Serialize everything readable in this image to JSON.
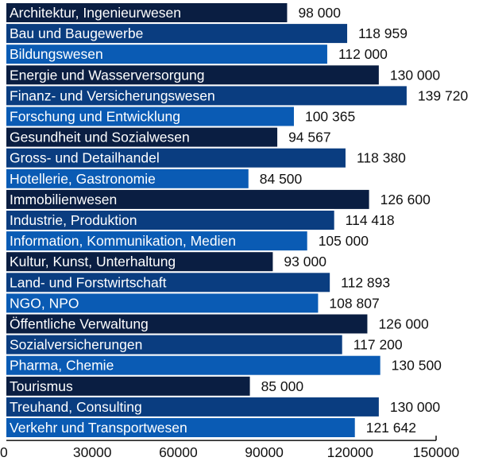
{
  "chart_data": {
    "type": "bar",
    "orientation": "horizontal",
    "categories": [
      "Architektur, Ingenieurwesen",
      "Bau und Baugewerbe",
      "Bildungswesen",
      "Energie und Wasserversorgung",
      "Finanz- und Versicherungswesen",
      "Forschung und Entwicklung",
      "Gesundheit und Sozialwesen",
      "Gross- und Detailhandel",
      "Hotellerie, Gastronomie",
      "Immobilienwesen",
      "Industrie, Produktion",
      "Information, Kommunikation, Medien",
      "Kultur, Kunst, Unterhaltung",
      "Land- und Forstwirtschaft",
      "NGO, NPO",
      "Öffentliche Verwaltung",
      "Sozialversicherungen",
      "Pharma, Chemie",
      "Tourismus",
      "Treuhand, Consulting",
      "Verkehr und Transportwesen"
    ],
    "values": [
      98000,
      118959,
      112000,
      130000,
      139720,
      100365,
      94567,
      118380,
      84500,
      126600,
      114418,
      105000,
      93000,
      112893,
      108807,
      126000,
      117200,
      130500,
      85000,
      130000,
      121642
    ],
    "value_labels": [
      "98 000",
      "118 959",
      "112 000",
      "130 000",
      "139 720",
      "100 365",
      "94 567",
      "118 380",
      "84 500",
      "126 600",
      "114 418",
      "105 000",
      "93 000",
      "112 893",
      "108 807",
      "126 000",
      "117 200",
      "130 500",
      "85 000",
      "130 000",
      "121 642"
    ],
    "bar_colors": [
      "#0a1e42",
      "#0a3d80",
      "#0a5bb4",
      "#0a1e42",
      "#0a3d80",
      "#0a5bb4",
      "#0a1e42",
      "#0a3d80",
      "#0a5bb4",
      "#0a1e42",
      "#0a3d80",
      "#0a5bb4",
      "#0a1e42",
      "#0a3d80",
      "#0a5bb4",
      "#0a1e42",
      "#0a3d80",
      "#0a5bb4",
      "#0a1e42",
      "#0a3d80",
      "#0a5bb4"
    ],
    "x_ticks": [
      "0",
      "30000",
      "60000",
      "90000",
      "120000",
      "150000"
    ],
    "xlim": [
      0,
      150000
    ],
    "title": "",
    "xlabel": "",
    "ylabel": "",
    "grid": false,
    "legend": "none"
  }
}
